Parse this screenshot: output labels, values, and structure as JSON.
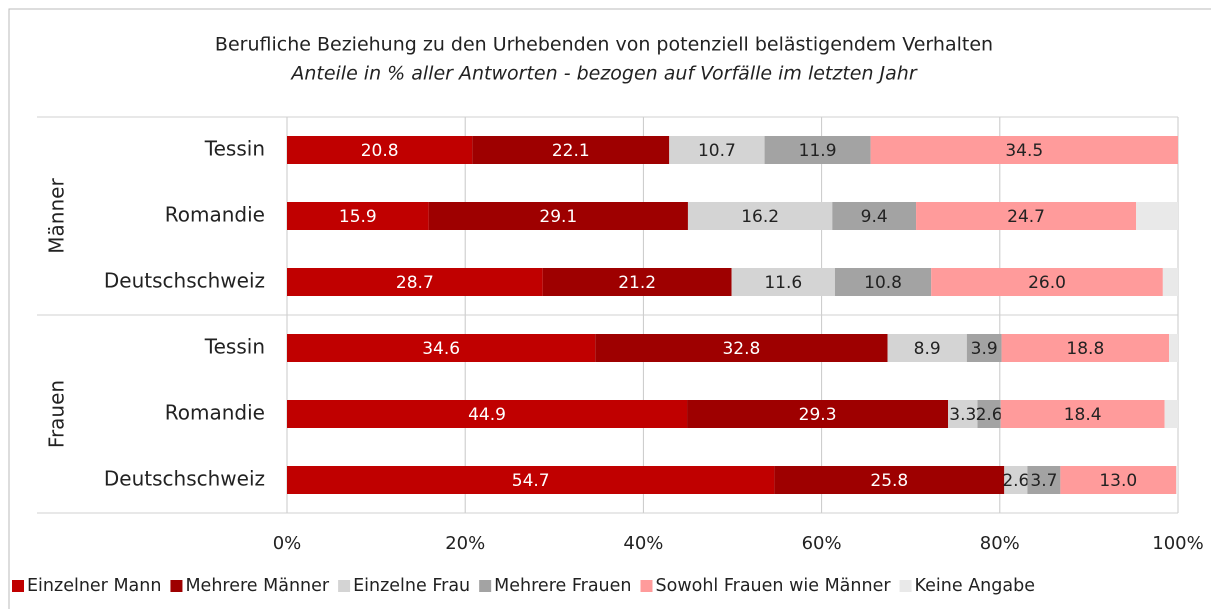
{
  "chart_data": {
    "type": "stacked-barh",
    "title": "Berufliche Beziehung zu den Urhebenden von potenziell belästigendem Verhalten",
    "subtitle": "Anteile in % aller Antworten - bezogen auf Vorfälle im letzten Jahr",
    "groups": [
      {
        "label": "Männer",
        "categories": [
          "Tessin",
          "Romandie",
          "Deutschschweiz"
        ]
      },
      {
        "label": "Frauen",
        "categories": [
          "Tessin",
          "Romandie",
          "Deutschschweiz"
        ]
      }
    ],
    "series": [
      {
        "name": "Einzelner Mann",
        "color": "#c00000",
        "label_color": "#ffffff",
        "values": [
          [
            20.8,
            15.9,
            28.7
          ],
          [
            34.6,
            44.9,
            54.7
          ]
        ],
        "value_labels": [
          [
            "20.8",
            "15.9",
            "28.7"
          ],
          [
            "34.6",
            "44.9",
            "54.7"
          ]
        ]
      },
      {
        "name": "Mehrere Männer",
        "color": "#9e0000",
        "label_color": "#ffffff",
        "values": [
          [
            22.1,
            29.1,
            21.2
          ],
          [
            32.8,
            29.3,
            25.8
          ]
        ],
        "value_labels": [
          [
            "22.1",
            "29.1",
            "21.2"
          ],
          [
            "32.8",
            "29.3",
            "25.8"
          ]
        ]
      },
      {
        "name": "Einzelne Frau",
        "color": "#d4d4d4",
        "label_color": "#222222",
        "values": [
          [
            10.7,
            16.2,
            11.6
          ],
          [
            8.9,
            3.3,
            2.6
          ]
        ],
        "value_labels": [
          [
            "10.7",
            "16.2",
            "11.6"
          ],
          [
            "8.9",
            "3.3",
            "2.6"
          ]
        ]
      },
      {
        "name": "Mehrere Frauen",
        "color": "#a3a3a3",
        "label_color": "#222222",
        "values": [
          [
            11.9,
            9.4,
            10.8
          ],
          [
            3.9,
            2.6,
            3.7
          ]
        ],
        "value_labels": [
          [
            "11.9",
            "9.4",
            "10.8"
          ],
          [
            "3.9",
            "2.6",
            "3.7"
          ]
        ]
      },
      {
        "name": "Sowohl Frauen wie Männer",
        "color": "#ff9b9b",
        "label_color": "#222222",
        "values": [
          [
            34.5,
            24.7,
            26.0
          ],
          [
            18.8,
            18.4,
            13.0
          ]
        ],
        "value_labels": [
          [
            "34.5",
            "24.7",
            "26.0"
          ],
          [
            "18.8",
            "18.4",
            "13.0"
          ]
        ]
      },
      {
        "name": "Keine Angabe",
        "color": "#e9e9e9",
        "values": [
          [
            0,
            4.7,
            1.7
          ],
          [
            1.0,
            1.5,
            0.2
          ]
        ]
      }
    ],
    "xlim": [
      0,
      100
    ],
    "xticks": [
      {
        "value": 0,
        "label": "0%"
      },
      {
        "value": 20,
        "label": "20%"
      },
      {
        "value": 40,
        "label": "40%"
      },
      {
        "value": 60,
        "label": "60%"
      },
      {
        "value": 80,
        "label": "80%"
      },
      {
        "value": 100,
        "label": "100%"
      }
    ],
    "grid": true,
    "legend": "bottom"
  }
}
